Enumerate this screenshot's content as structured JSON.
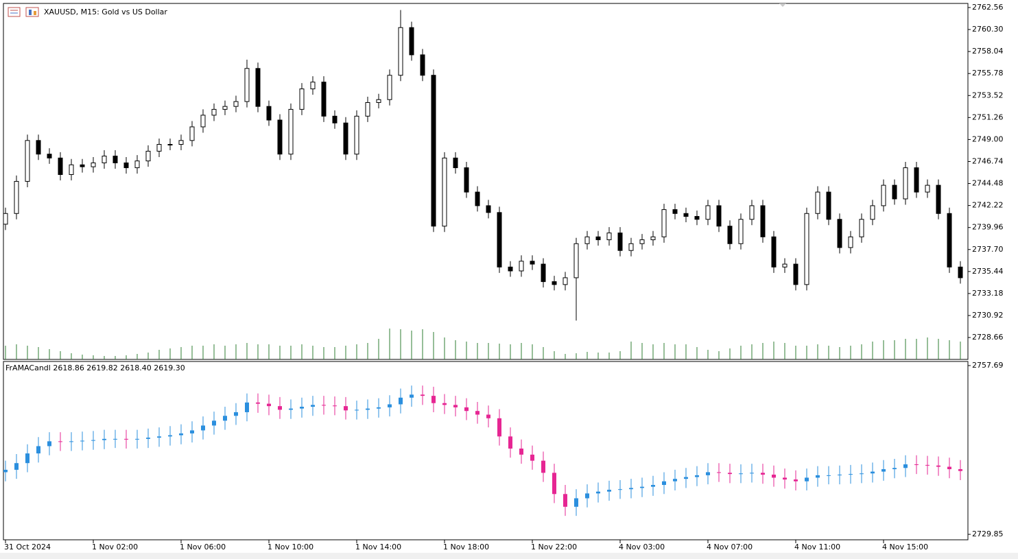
{
  "chart_data": [
    {
      "type": "candlestick",
      "title": "XAUUSD, M15:  Gold vs US Dollar",
      "categories": [
        "31 Oct 2024",
        null,
        null,
        null,
        null,
        null,
        null,
        null,
        "1 Nov 02:00",
        null,
        null,
        null,
        null,
        null,
        null,
        null,
        "1 Nov 06:00",
        null,
        null,
        null,
        null,
        null,
        null,
        null,
        "1 Nov 10:00",
        null,
        null,
        null,
        null,
        null,
        null,
        null,
        "1 Nov 14:00",
        null,
        null,
        null,
        null,
        null,
        null,
        null,
        "1 Nov 18:00",
        null,
        null,
        null,
        null,
        null,
        null,
        null,
        "1 Nov 22:00",
        null,
        null,
        null,
        null,
        null,
        null,
        null,
        "4 Nov 03:00",
        null,
        null,
        null,
        null,
        null,
        null,
        null,
        "4 Nov 07:00",
        null,
        null,
        null,
        null,
        null,
        null,
        null,
        "4 Nov 11:00",
        null,
        null,
        null,
        null,
        null,
        null,
        null,
        "4 Nov 15:00",
        null,
        null,
        null,
        null,
        null,
        null,
        null
      ],
      "open": [
        2740.3,
        2741.4,
        2744.7,
        2748.9,
        2747.5,
        2747.1,
        2745.4,
        2746.4,
        2746.2,
        2746.6,
        2747.3,
        2746.6,
        2746.1,
        2746.8,
        2747.8,
        2748.5,
        2748.5,
        2748.9,
        2750.3,
        2751.5,
        2752.1,
        2752.4,
        2752.9,
        2756.3,
        2752.4,
        2751.0,
        2747.5,
        2752.1,
        2754.2,
        2754.9,
        2751.4,
        2750.7,
        2747.5,
        2751.4,
        2752.8,
        2753.1,
        2755.6,
        2760.5,
        2757.7,
        2755.6,
        2740.1,
        2747.1,
        2746.1,
        2743.6,
        2742.2,
        2741.5,
        2735.9,
        2735.5,
        2736.5,
        2736.2,
        2734.4,
        2734.1,
        2734.8,
        2738.3,
        2739.0,
        2738.7,
        2739.4,
        2737.6,
        2738.3,
        2738.7,
        2739.0,
        2741.8,
        2741.4,
        2741.1,
        2740.8,
        2742.2,
        2740.1,
        2738.3,
        2740.8,
        2742.2,
        2739.0,
        2735.9,
        2736.2,
        2734.1,
        2741.4,
        2743.6,
        2740.8,
        2737.9,
        2739.0,
        2740.8,
        2742.2,
        2744.3,
        2742.9,
        2746.1,
        2743.6,
        2744.3,
        2741.4,
        2735.9
      ],
      "high": [
        2742.0,
        2745.3,
        2749.5,
        2749.5,
        2748.1,
        2747.7,
        2747.0,
        2747.0,
        2747.2,
        2747.9,
        2747.9,
        2747.2,
        2747.4,
        2748.4,
        2749.1,
        2749.1,
        2749.5,
        2750.9,
        2752.1,
        2752.7,
        2753.0,
        2753.5,
        2757.2,
        2756.9,
        2753.0,
        2751.6,
        2752.7,
        2754.8,
        2755.5,
        2755.5,
        2752.0,
        2751.3,
        2752.0,
        2753.4,
        2753.7,
        2756.2,
        2762.3,
        2761.1,
        2758.3,
        2756.2,
        2747.7,
        2747.7,
        2746.7,
        2744.2,
        2742.8,
        2742.1,
        2736.5,
        2737.1,
        2737.1,
        2736.8,
        2735.0,
        2735.4,
        2738.9,
        2739.6,
        2739.6,
        2740.0,
        2740.0,
        2738.9,
        2739.3,
        2739.6,
        2742.4,
        2742.4,
        2742.0,
        2741.7,
        2742.8,
        2742.8,
        2740.7,
        2741.4,
        2742.8,
        2742.8,
        2739.6,
        2736.8,
        2736.8,
        2742.0,
        2744.2,
        2744.2,
        2741.4,
        2739.6,
        2741.4,
        2742.8,
        2744.9,
        2744.9,
        2746.7,
        2746.7,
        2744.9,
        2744.9,
        2742.0,
        2736.5
      ],
      "low": [
        2739.7,
        2740.8,
        2744.1,
        2746.9,
        2746.5,
        2744.8,
        2744.8,
        2745.6,
        2745.6,
        2746.0,
        2746.0,
        2745.5,
        2745.5,
        2746.2,
        2747.2,
        2747.9,
        2747.9,
        2748.3,
        2749.7,
        2750.9,
        2751.5,
        2751.8,
        2752.3,
        2751.8,
        2750.4,
        2746.9,
        2746.9,
        2751.5,
        2753.6,
        2750.8,
        2750.1,
        2746.9,
        2746.9,
        2750.8,
        2752.2,
        2752.5,
        2755.0,
        2757.1,
        2755.0,
        2739.5,
        2739.5,
        2745.5,
        2743.0,
        2741.6,
        2740.9,
        2735.3,
        2734.9,
        2734.9,
        2735.6,
        2733.8,
        2733.5,
        2733.5,
        2730.4,
        2737.7,
        2738.1,
        2738.1,
        2737.0,
        2737.0,
        2737.7,
        2738.1,
        2738.4,
        2740.8,
        2740.5,
        2740.2,
        2740.2,
        2739.5,
        2737.7,
        2737.7,
        2740.2,
        2738.4,
        2735.3,
        2735.3,
        2733.5,
        2733.5,
        2740.8,
        2740.2,
        2737.3,
        2737.3,
        2738.4,
        2740.2,
        2741.6,
        2742.3,
        2742.3,
        2743.0,
        2743.0,
        2740.8,
        2735.3,
        2734.2
      ],
      "close": [
        2741.4,
        2744.7,
        2748.9,
        2747.5,
        2747.1,
        2745.4,
        2746.4,
        2746.2,
        2746.6,
        2747.3,
        2746.6,
        2746.1,
        2746.8,
        2747.8,
        2748.5,
        2748.5,
        2748.9,
        2750.3,
        2751.5,
        2752.1,
        2752.4,
        2752.9,
        2756.3,
        2752.4,
        2751.0,
        2747.5,
        2752.1,
        2754.2,
        2754.9,
        2751.4,
        2750.7,
        2747.5,
        2751.4,
        2752.8,
        2753.1,
        2755.6,
        2760.5,
        2757.7,
        2755.6,
        2740.1,
        2747.1,
        2746.1,
        2743.6,
        2742.2,
        2741.5,
        2735.9,
        2735.5,
        2736.5,
        2736.2,
        2734.4,
        2734.1,
        2734.8,
        2738.3,
        2739.0,
        2738.7,
        2739.4,
        2737.6,
        2738.3,
        2738.7,
        2739.0,
        2741.8,
        2741.4,
        2741.1,
        2740.8,
        2742.2,
        2740.1,
        2738.3,
        2740.8,
        2742.2,
        2739.0,
        2735.9,
        2736.2,
        2734.1,
        2741.4,
        2743.6,
        2740.8,
        2737.9,
        2739.0,
        2740.8,
        2742.2,
        2744.3,
        2742.9,
        2746.1,
        2743.6,
        2744.3,
        2741.4,
        2735.9,
        2734.8
      ],
      "volume": [
        2000,
        2200,
        2000,
        1800,
        1500,
        1200,
        900,
        700,
        600,
        500,
        500,
        600,
        800,
        1000,
        1400,
        1600,
        1800,
        2000,
        2000,
        2200,
        2000,
        2200,
        2400,
        2200,
        2200,
        2000,
        2000,
        2200,
        2000,
        1800,
        1800,
        2000,
        2200,
        2400,
        3000,
        4500,
        4400,
        4200,
        4400,
        4000,
        3200,
        2800,
        2600,
        2400,
        2400,
        2300,
        2200,
        2400,
        2200,
        1800,
        1200,
        800,
        900,
        1100,
        1000,
        1000,
        1200,
        2600,
        2400,
        2200,
        2400,
        2200,
        2200,
        1800,
        1400,
        1200,
        1600,
        2000,
        2200,
        2400,
        2600,
        2400,
        2000,
        2000,
        2200,
        2000,
        1800,
        2000,
        2200,
        2600,
        2800,
        2800,
        3000,
        3000,
        3200,
        3000,
        2800,
        2600
      ],
      "volume_ylim": [
        0,
        6000
      ],
      "volume_color": "#2e7d32",
      "up_color": "#ffffff",
      "down_color": "#000000",
      "outline_color": "#000000",
      "ylim": [
        2726.41,
        2762.98
      ],
      "yticks": [
        2762.56,
        {
          "value": 2760.3,
          "label": "2760.30"
        },
        2758.04,
        2755.78,
        2753.52,
        2751.26,
        {
          "value": 2749,
          "label": "2749.00"
        },
        2746.74,
        2744.48,
        2742.22,
        2739.96,
        {
          "value": 2737.7,
          "label": "2737.70"
        },
        2735.44,
        2733.18,
        2730.92,
        2728.66
      ]
    },
    {
      "type": "candlestick",
      "title": "FrAMACandl 2618.86 2619.82 2618.40 2619.30",
      "open": [
        2740.1,
        2740.5,
        2741.6,
        2743.2,
        2744.4,
        2745.2,
        2745.1,
        2745.2,
        2745.3,
        2745.4,
        2745.6,
        2745.6,
        2745.5,
        2745.6,
        2745.8,
        2746.0,
        2746.2,
        2746.5,
        2747.0,
        2747.8,
        2748.6,
        2749.4,
        2750.0,
        2751.6,
        2751.4,
        2751.0,
        2750.4,
        2750.6,
        2750.9,
        2751.2,
        2751.1,
        2751.0,
        2750.3,
        2750.4,
        2750.6,
        2750.8,
        2751.3,
        2752.4,
        2752.9,
        2752.7,
        2751.5,
        2751.2,
        2750.8,
        2750.2,
        2749.6,
        2749.0,
        2746.0,
        2744.0,
        2743.0,
        2742.0,
        2740.0,
        2736.5,
        2734.4,
        2735.8,
        2736.6,
        2736.9,
        2737.2,
        2737.3,
        2737.5,
        2737.7,
        2738.0,
        2738.6,
        2739.0,
        2739.3,
        2739.6,
        2740.1,
        2740.0,
        2739.8,
        2739.9,
        2740.0,
        2739.7,
        2739.2,
        2738.9,
        2738.6,
        2739.2,
        2739.6,
        2739.6,
        2739.7,
        2739.8,
        2739.9,
        2740.2,
        2740.6,
        2740.8,
        2741.4,
        2741.3,
        2741.2,
        2741.0,
        2740.6
      ],
      "high": [
        2742.0,
        2743.1,
        2744.7,
        2745.9,
        2746.7,
        2746.7,
        2746.7,
        2746.8,
        2746.9,
        2747.1,
        2747.1,
        2747.1,
        2747.1,
        2747.3,
        2747.5,
        2747.7,
        2748.0,
        2748.5,
        2749.3,
        2750.1,
        2750.9,
        2751.5,
        2753.1,
        2753.1,
        2752.9,
        2752.5,
        2752.1,
        2752.4,
        2752.7,
        2752.7,
        2752.6,
        2752.5,
        2751.9,
        2752.1,
        2752.3,
        2752.8,
        2753.9,
        2754.4,
        2754.4,
        2754.2,
        2753.0,
        2752.7,
        2752.3,
        2751.7,
        2751.1,
        2750.5,
        2747.5,
        2745.5,
        2744.5,
        2743.5,
        2741.5,
        2738.0,
        2737.3,
        2738.1,
        2738.4,
        2738.7,
        2738.8,
        2739.0,
        2739.2,
        2739.5,
        2740.1,
        2740.5,
        2740.8,
        2741.1,
        2741.6,
        2741.6,
        2741.5,
        2741.4,
        2741.5,
        2741.5,
        2741.2,
        2740.7,
        2740.4,
        2740.7,
        2741.1,
        2741.1,
        2741.2,
        2741.3,
        2741.4,
        2741.7,
        2742.1,
        2742.3,
        2742.9,
        2742.9,
        2742.8,
        2742.7,
        2742.5,
        2742.1
      ],
      "low": [
        2738.6,
        2739.0,
        2740.1,
        2741.7,
        2742.9,
        2743.6,
        2743.6,
        2743.7,
        2743.8,
        2743.9,
        2744.1,
        2744.0,
        2744.0,
        2744.1,
        2744.3,
        2744.5,
        2744.7,
        2745.0,
        2745.5,
        2746.3,
        2747.1,
        2747.9,
        2748.5,
        2749.9,
        2749.5,
        2748.9,
        2748.9,
        2749.1,
        2749.4,
        2749.6,
        2749.5,
        2748.8,
        2748.8,
        2748.9,
        2749.1,
        2749.3,
        2749.8,
        2750.9,
        2751.2,
        2750.0,
        2749.7,
        2749.3,
        2748.7,
        2748.1,
        2747.5,
        2744.5,
        2742.5,
        2741.5,
        2740.5,
        2738.5,
        2735.0,
        2732.9,
        2732.9,
        2734.3,
        2735.1,
        2735.4,
        2735.7,
        2735.8,
        2736.0,
        2736.2,
        2736.5,
        2737.1,
        2737.5,
        2737.8,
        2738.1,
        2738.5,
        2738.3,
        2738.3,
        2738.4,
        2738.2,
        2737.7,
        2737.4,
        2737.1,
        2737.1,
        2737.7,
        2738.1,
        2738.1,
        2738.2,
        2738.3,
        2738.4,
        2738.7,
        2739.1,
        2739.3,
        2739.8,
        2739.7,
        2739.5,
        2739.1,
        2738.8
      ],
      "close": [
        2740.5,
        2741.6,
        2743.2,
        2744.4,
        2745.2,
        2745.1,
        2745.2,
        2745.3,
        2745.4,
        2745.6,
        2745.6,
        2745.5,
        2745.6,
        2745.8,
        2746.0,
        2746.2,
        2746.5,
        2747.0,
        2747.8,
        2748.6,
        2749.4,
        2750.0,
        2751.6,
        2751.4,
        2751.0,
        2750.4,
        2750.6,
        2750.9,
        2751.2,
        2751.1,
        2751.0,
        2750.3,
        2750.4,
        2750.6,
        2750.8,
        2751.3,
        2752.4,
        2752.9,
        2752.7,
        2751.5,
        2751.2,
        2750.8,
        2750.2,
        2749.6,
        2749.0,
        2746.0,
        2744.0,
        2743.0,
        2742.0,
        2740.0,
        2736.5,
        2734.4,
        2735.8,
        2736.6,
        2736.9,
        2737.2,
        2737.3,
        2737.5,
        2737.7,
        2738.0,
        2738.6,
        2739.0,
        2739.3,
        2739.6,
        2740.1,
        2740.0,
        2739.8,
        2739.9,
        2740.0,
        2739.7,
        2739.2,
        2738.9,
        2738.6,
        2739.2,
        2739.6,
        2739.6,
        2739.7,
        2739.8,
        2739.9,
        2740.2,
        2740.6,
        2740.8,
        2741.4,
        2741.3,
        2741.2,
        2741.0,
        2740.6,
        2740.3
      ],
      "up_color": "#2b8fde",
      "down_color": "#e62693",
      "ylim": [
        2728.95,
        2758.37
      ],
      "yticks": [
        2757.69,
        2729.85
      ]
    }
  ]
}
